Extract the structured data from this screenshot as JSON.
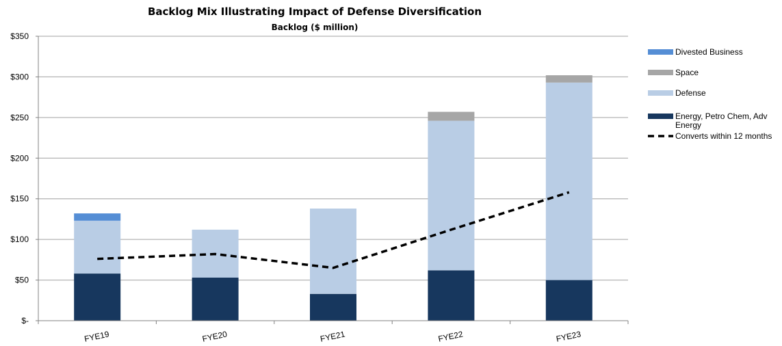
{
  "chart_data": {
    "type": "bar",
    "title": "Backlog Mix Illustrating Impact of Defense Diversification",
    "subtitle": "Backlog ($ million)",
    "categories": [
      "FYE19",
      "FYE20",
      "FYE21",
      "FYE22",
      "FYE23"
    ],
    "series": [
      {
        "name": "Energy, Petro Chem, Adv Energy",
        "type": "bar",
        "values": [
          58,
          53,
          33,
          62,
          50
        ],
        "color": "#17375e"
      },
      {
        "name": "Defense",
        "type": "bar",
        "values": [
          65,
          59,
          105,
          184,
          243
        ],
        "color": "#b9cde5"
      },
      {
        "name": "Space",
        "type": "bar",
        "values": [
          0,
          0,
          0,
          11,
          9
        ],
        "color": "#a6a6a6"
      },
      {
        "name": "Divested Business",
        "type": "bar",
        "values": [
          9,
          0,
          0,
          0,
          0
        ],
        "color": "#558ed5"
      },
      {
        "name": "Converts within 12 months",
        "type": "line",
        "values": [
          76,
          82,
          65,
          112,
          158
        ],
        "color": "#000000",
        "dashed": true
      }
    ],
    "stacked": true,
    "y_ticks": [
      "$-",
      "$50",
      "$100",
      "$150",
      "$200",
      "$250",
      "$300",
      "$350"
    ],
    "ylim": [
      0,
      350
    ],
    "y_step": 50,
    "grid": true,
    "legend_placement": "right",
    "legend": [
      {
        "series": "Divested Business",
        "label": "Divested Business",
        "kind": "box"
      },
      {
        "series": "Space",
        "label": "Space",
        "kind": "box"
      },
      {
        "series": "Defense",
        "label": "Defense",
        "kind": "box"
      },
      {
        "series": "Energy, Petro Chem, Adv Energy",
        "label_lines": [
          "Energy, Petro Chem, Adv",
          "Energy"
        ],
        "kind": "box"
      },
      {
        "series": "Converts within 12 months",
        "label": "Converts within 12 months",
        "kind": "dash"
      }
    ]
  }
}
